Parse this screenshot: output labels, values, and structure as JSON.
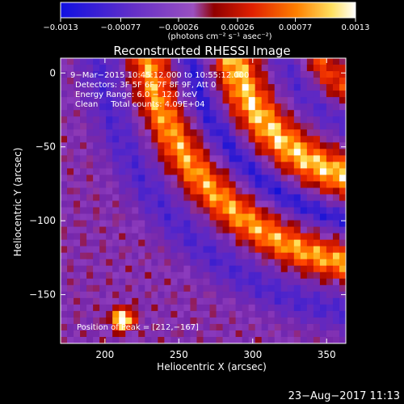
{
  "chart_data": {
    "type": "heatmap",
    "title": "Reconstructed RHESSI Image",
    "xlabel": "Heliocentric X (arcsec)",
    "ylabel": "Heliocentric Y (arcsec)",
    "xlim": [
      170,
      363
    ],
    "ylim": [
      -183,
      10
    ],
    "x_ticks": [
      200,
      250,
      300,
      350
    ],
    "y_ticks": [
      0,
      -50,
      -100,
      -150
    ],
    "x_tick_labels": [
      "200",
      "250",
      "300",
      "350"
    ],
    "y_tick_labels": [
      "0",
      "−50",
      "−100",
      "−150"
    ],
    "colorbar": {
      "range": [
        -0.0013,
        0.0013
      ],
      "ticks": [
        -0.0013,
        -0.00077,
        -0.00026,
        0.00026,
        0.00077,
        0.0013
      ],
      "tick_labels": [
        "−0.0013",
        "−0.00077",
        "−0.00026",
        "0.00026",
        "0.00077",
        "0.0013"
      ],
      "units": "(photons cm⁻² s⁻¹ asec⁻²)",
      "colors": [
        "#1010d8",
        "#6a30c8",
        "#9a50c0",
        "#c02010",
        "#ff4000",
        "#ff9a00",
        "#ffffff"
      ]
    },
    "annotations": [
      "9−Mar−2015 10:45:12.000 to 10:55:12.000",
      "Detectors: 3F 5F 6F 7F 8F 9F, Att 0",
      "Energy Range: 6.0 − 12.0 keV",
      "Clean     Total counts: 4.09E+04"
    ],
    "peak": {
      "label": "Position of Peak = [212,−167]",
      "x": 212,
      "y": -167
    },
    "features": [
      {
        "name": "inner ring",
        "cx": 480,
        "cy": 30,
        "r": 285,
        "value": 0.00055
      },
      {
        "name": "outer ring",
        "cx": 480,
        "cy": 30,
        "r": 190,
        "value": 0.0007
      },
      {
        "name": "blue trough",
        "cx": 480,
        "cy": 30,
        "r": 240,
        "value": -0.0008
      },
      {
        "name": "compact source",
        "x": 212,
        "y": -167,
        "value": 0.0013
      }
    ]
  },
  "footer": {
    "timestamp": "23−Aug−2017 11:13"
  }
}
